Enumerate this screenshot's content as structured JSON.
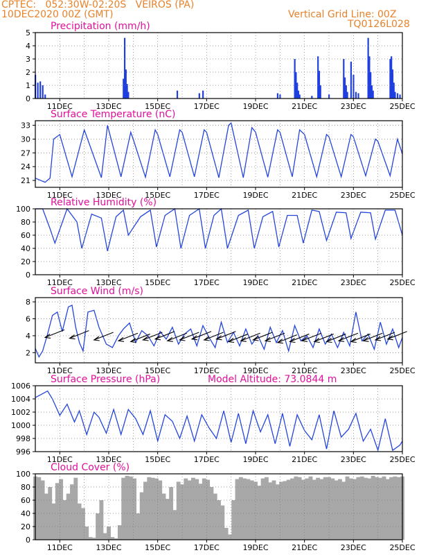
{
  "header": {
    "line1": "CPTEC:   052:30W-02:20S   VEIROS (PA)",
    "line2": "10DEC2020 00Z (GMT)",
    "right1": "Vertical Grid Line: 00Z",
    "right2": "TQ0126L028"
  },
  "colors": {
    "header": "#e8822a",
    "title": "#e0109a",
    "line": "#2244dd",
    "bar": "#1f3fe0",
    "cloud": "#a8a8a8"
  },
  "x_axis": {
    "ticks": [
      "11DEC",
      "13DEC",
      "15DEC",
      "17DEC",
      "19DEC",
      "21DEC",
      "23DEC",
      "25DEC"
    ],
    "tick_days": [
      1,
      3,
      5,
      7,
      9,
      11,
      13,
      15
    ],
    "range_days": [
      0,
      15
    ]
  },
  "chart_data": [
    {
      "type": "bar",
      "title": "Precipitation (mm/h)",
      "ylim": [
        0,
        5
      ],
      "yticks": [
        0,
        1,
        2,
        3,
        4,
        5
      ],
      "x": [
        0.0,
        0.1,
        0.2,
        0.3,
        0.4,
        3.6,
        3.65,
        3.7,
        3.75,
        3.8,
        5.8,
        6.7,
        6.85,
        9.9,
        10.0,
        10.6,
        10.65,
        10.7,
        10.75,
        10.8,
        11.3,
        11.55,
        11.6,
        11.65,
        12.0,
        12.6,
        12.65,
        12.7,
        12.75,
        12.9,
        13.0,
        13.1,
        13.2,
        13.6,
        13.65,
        13.7,
        13.75,
        13.8,
        14.5,
        14.55,
        14.6,
        14.65,
        14.7,
        14.8,
        14.9
      ],
      "values": [
        1.8,
        1.2,
        1.3,
        1.0,
        0.3,
        1.5,
        4.6,
        2.2,
        1.1,
        0.5,
        0.6,
        0.4,
        0.6,
        0.4,
        0.3,
        3.0,
        2.0,
        1.2,
        0.6,
        0.3,
        0.2,
        3.2,
        2.1,
        1.0,
        0.3,
        3.0,
        1.6,
        1.0,
        0.5,
        2.8,
        1.8,
        0.5,
        0.4,
        4.6,
        3.2,
        2.0,
        1.0,
        0.6,
        3.0,
        3.2,
        2.2,
        1.2,
        0.5,
        0.4,
        0.3
      ],
      "xlabel": "",
      "ylabel": ""
    },
    {
      "type": "line",
      "title": "Surface Temperature (nC)",
      "ylim": [
        19.5,
        34
      ],
      "yticks": [
        21,
        24,
        27,
        30,
        33
      ],
      "x": [
        0.0,
        0.4,
        0.6,
        0.75,
        1.0,
        1.5,
        2.0,
        2.7,
        2.95,
        3.5,
        3.9,
        4.0,
        4.5,
        4.9,
        5.0,
        5.5,
        5.9,
        6.0,
        6.5,
        6.9,
        7.0,
        7.5,
        7.9,
        8.0,
        8.5,
        8.85,
        9.0,
        9.5,
        9.9,
        10.0,
        10.5,
        10.8,
        11.0,
        11.5,
        11.9,
        12.0,
        12.5,
        12.9,
        13.0,
        13.5,
        13.9,
        14.0,
        14.5,
        14.8,
        15.0
      ],
      "values": [
        21.5,
        20.6,
        21.5,
        30.0,
        31.0,
        21.8,
        32.0,
        21.6,
        33.0,
        21.8,
        31.5,
        30.0,
        21.7,
        32.0,
        31.0,
        21.8,
        32.0,
        31.5,
        21.8,
        32.0,
        31.5,
        21.6,
        33.0,
        33.5,
        21.6,
        32.5,
        31.5,
        21.7,
        32.0,
        31.5,
        21.8,
        32.0,
        31.0,
        21.8,
        31.0,
        30.5,
        21.8,
        31.0,
        30.5,
        22.0,
        30.0,
        29.5,
        22.0,
        30.0,
        26.8
      ],
      "xlabel": "",
      "ylabel": ""
    },
    {
      "type": "line",
      "title": "Relative Humidity (%)",
      "ylim": [
        0,
        100
      ],
      "yticks": [
        0,
        20,
        40,
        60,
        80,
        100
      ],
      "x": [
        0.0,
        0.3,
        0.6,
        0.8,
        1.3,
        1.7,
        1.9,
        2.3,
        2.7,
        2.95,
        3.3,
        3.6,
        3.8,
        4.3,
        4.7,
        4.95,
        5.3,
        5.7,
        5.95,
        6.3,
        6.7,
        6.95,
        7.3,
        7.6,
        7.85,
        8.3,
        8.7,
        8.95,
        9.3,
        9.7,
        9.95,
        10.3,
        10.7,
        10.95,
        11.3,
        11.6,
        11.9,
        12.3,
        12.7,
        12.9,
        13.3,
        13.7,
        13.9,
        14.3,
        14.7,
        15.0
      ],
      "values": [
        100,
        100,
        70,
        48,
        100,
        80,
        40,
        92,
        86,
        36,
        88,
        98,
        60,
        88,
        98,
        42,
        90,
        100,
        40,
        90,
        100,
        40,
        90,
        100,
        40,
        90,
        98,
        40,
        88,
        96,
        42,
        90,
        90,
        48,
        98,
        96,
        52,
        95,
        94,
        55,
        95,
        94,
        54,
        98,
        98,
        60
      ],
      "xlabel": "",
      "ylabel": ""
    },
    {
      "type": "line",
      "title": "Surface Wind (m/s)",
      "ylim": [
        0.8,
        8.5
      ],
      "yticks": [
        2,
        4,
        6,
        8
      ],
      "x": [
        0.0,
        0.15,
        0.3,
        0.5,
        0.7,
        0.9,
        1.1,
        1.35,
        1.5,
        1.65,
        1.8,
        1.95,
        2.15,
        2.4,
        2.6,
        2.9,
        3.15,
        3.4,
        3.6,
        3.85,
        4.1,
        4.35,
        4.6,
        4.85,
        5.1,
        5.35,
        5.6,
        5.85,
        6.1,
        6.35,
        6.6,
        6.85,
        7.1,
        7.35,
        7.6,
        7.85,
        8.1,
        8.35,
        8.6,
        8.85,
        9.1,
        9.35,
        9.6,
        9.85,
        10.1,
        10.35,
        10.6,
        10.85,
        11.1,
        11.35,
        11.6,
        11.85,
        12.1,
        12.35,
        12.6,
        12.85,
        13.1,
        13.35,
        13.6,
        13.85,
        14.1,
        14.35,
        14.6,
        14.85,
        15.0
      ],
      "values": [
        2.5,
        1.5,
        2.2,
        4.2,
        6.4,
        6.8,
        4.5,
        7.4,
        7.6,
        5.0,
        3.2,
        2.2,
        6.8,
        7.0,
        5.0,
        3.0,
        2.6,
        4.0,
        4.8,
        5.5,
        3.2,
        4.6,
        4.0,
        2.8,
        4.5,
        3.6,
        5.0,
        3.0,
        4.2,
        4.8,
        2.8,
        5.2,
        3.8,
        2.6,
        5.6,
        3.2,
        4.4,
        2.8,
        4.8,
        3.0,
        4.0,
        2.4,
        5.0,
        3.2,
        4.6,
        2.2,
        5.2,
        3.4,
        4.0,
        2.6,
        4.8,
        3.0,
        4.2,
        2.6,
        4.4,
        2.8,
        6.8,
        3.4,
        4.2,
        2.4,
        5.6,
        3.0,
        4.8,
        2.6,
        3.8
      ],
      "xlabel": "",
      "ylabel": ""
    },
    {
      "type": "line",
      "title": "Surface Pressure (hPa)",
      "annotation": "Model Altitude: 73.0844 m",
      "ylim": [
        996,
        1006
      ],
      "yticks": [
        996,
        998,
        1000,
        1002,
        1004,
        1006
      ],
      "x": [
        0.0,
        0.3,
        0.5,
        0.7,
        1.0,
        1.3,
        1.6,
        1.8,
        2.1,
        2.4,
        2.6,
        2.9,
        3.2,
        3.5,
        3.8,
        4.1,
        4.4,
        4.7,
        5.0,
        5.3,
        5.6,
        5.9,
        6.2,
        6.5,
        6.8,
        7.1,
        7.4,
        7.7,
        8.0,
        8.3,
        8.6,
        8.9,
        9.2,
        9.5,
        9.8,
        10.1,
        10.4,
        10.7,
        11.0,
        11.3,
        11.6,
        11.9,
        12.2,
        12.5,
        12.8,
        13.1,
        13.4,
        13.7,
        14.0,
        14.3,
        14.6,
        14.9,
        15.0
      ],
      "values": [
        1004.2,
        1004.8,
        1005.2,
        1004.0,
        1001.5,
        1003.2,
        1000.5,
        1002.2,
        998.6,
        1002.0,
        1001.2,
        998.8,
        1002.4,
        998.6,
        1002.4,
        1001.0,
        998.6,
        1002.2,
        997.6,
        1001.6,
        1000.6,
        998.0,
        1001.4,
        997.6,
        1001.6,
        999.6,
        998.0,
        1002.2,
        997.4,
        1001.8,
        997.2,
        1002.2,
        999.0,
        1001.6,
        997.2,
        1001.8,
        996.8,
        1001.6,
        999.2,
        997.8,
        1001.6,
        996.4,
        1002.2,
        998.2,
        999.4,
        1001.8,
        997.6,
        999.4,
        996.2,
        1001.0,
        996.2,
        997.0,
        997.6
      ],
      "xlabel": "",
      "ylabel": ""
    },
    {
      "type": "area",
      "title": "Cloud Cover (%)",
      "ylim": [
        0,
        100
      ],
      "yticks": [
        0,
        20,
        40,
        60,
        80,
        100
      ],
      "x": [
        0.0,
        0.15,
        0.3,
        0.45,
        0.6,
        0.75,
        0.9,
        1.05,
        1.2,
        1.35,
        1.5,
        1.65,
        1.8,
        1.95,
        2.1,
        2.25,
        2.4,
        2.55,
        2.7,
        2.85,
        3.0,
        3.15,
        3.3,
        3.45,
        3.6,
        3.75,
        3.9,
        4.05,
        4.2,
        4.35,
        4.5,
        4.65,
        4.8,
        4.95,
        5.1,
        5.25,
        5.4,
        5.55,
        5.7,
        5.85,
        6.0,
        6.15,
        6.3,
        6.45,
        6.6,
        6.75,
        6.9,
        7.05,
        7.2,
        7.35,
        7.5,
        7.65,
        7.8,
        7.95,
        8.1,
        8.25,
        8.4,
        8.55,
        8.7,
        8.85,
        9.0,
        9.15,
        9.3,
        9.45,
        9.6,
        9.75,
        9.9,
        10.05,
        10.2,
        10.35,
        10.5,
        10.65,
        10.8,
        10.95,
        11.1,
        11.25,
        11.4,
        11.55,
        11.7,
        11.85,
        12.0,
        12.15,
        12.3,
        12.45,
        12.6,
        12.75,
        12.9,
        13.05,
        13.2,
        13.35,
        13.5,
        13.65,
        13.8,
        13.95,
        14.1,
        14.25,
        14.4,
        14.55,
        14.7,
        14.85,
        15.0
      ],
      "values": [
        96,
        95,
        90,
        70,
        80,
        55,
        86,
        92,
        60,
        70,
        84,
        94,
        55,
        48,
        20,
        4,
        3,
        40,
        60,
        10,
        20,
        4,
        2,
        22,
        94,
        97,
        96,
        93,
        40,
        72,
        88,
        95,
        94,
        93,
        90,
        70,
        62,
        80,
        45,
        88,
        84,
        93,
        90,
        94,
        92,
        85,
        93,
        91,
        80,
        70,
        60,
        52,
        18,
        8,
        60,
        92,
        95,
        93,
        92,
        90,
        88,
        82,
        93,
        95,
        87,
        90,
        84,
        88,
        89,
        91,
        93,
        96,
        95,
        91,
        93,
        96,
        91,
        94,
        92,
        95,
        95,
        93,
        90,
        92,
        88,
        96,
        93,
        92,
        95,
        96,
        94,
        93,
        97,
        95,
        94,
        96,
        92,
        95,
        96,
        95,
        96
      ],
      "xlabel": "",
      "ylabel": ""
    }
  ],
  "wind_barbs": {
    "days": [
      0.4,
      1.4,
      2.4,
      3.4,
      3.9,
      4.4,
      4.9,
      5.4,
      5.9,
      6.4,
      6.9,
      7.4,
      7.9,
      8.4,
      8.9,
      9.4,
      9.9,
      10.4,
      10.9,
      11.4,
      11.9,
      12.4,
      12.9,
      13.4,
      13.9,
      14.4
    ],
    "speed": [
      3.8,
      3.7,
      3.5,
      3.4,
      3.3,
      3.5,
      3.6,
      3.4,
      3.5,
      3.6,
      3.5,
      3.6,
      3.3,
      3.4,
      3.5,
      3.4,
      3.2,
      3.3,
      3.4,
      3.3,
      3.3,
      3.4,
      3.3,
      3.4,
      3.5,
      3.6
    ],
    "direction": "from east-northeast"
  }
}
